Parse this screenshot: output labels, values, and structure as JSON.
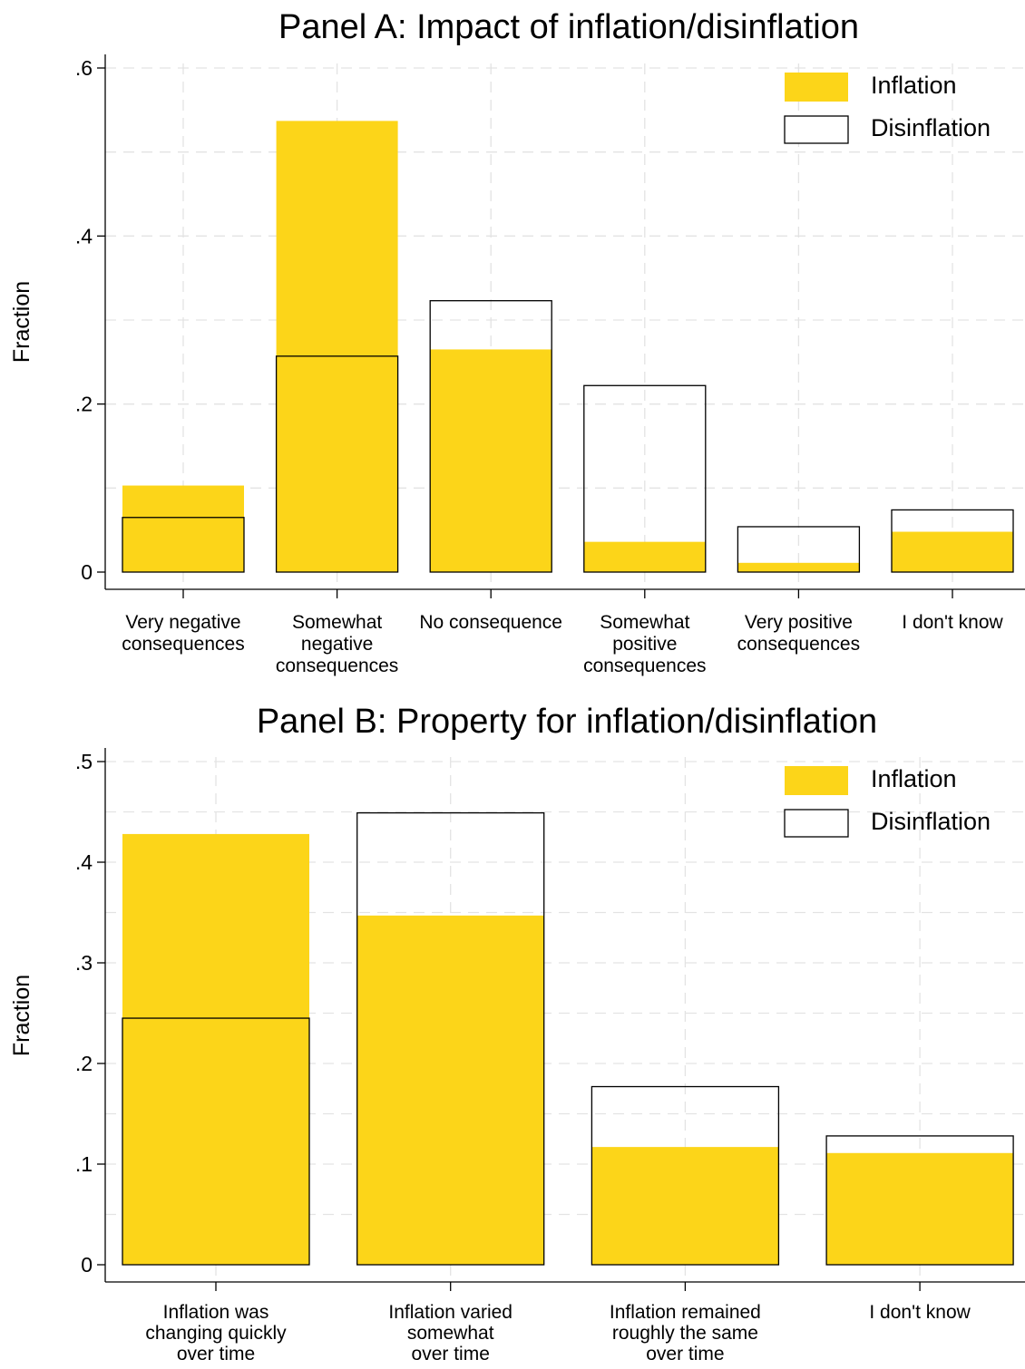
{
  "chart_data": [
    {
      "type": "bar",
      "title": "Panel A: Impact of inflation/disinflation",
      "ylabel": "Fraction",
      "xlabel": "",
      "ylim": [
        0,
        0.6
      ],
      "yticks": [
        0,
        0.2,
        0.4,
        0.6
      ],
      "ytick_labels": [
        "0",
        ".2",
        ".4",
        ".6"
      ],
      "legend_position": "top-right",
      "grid": true,
      "categories": [
        [
          "Very negative",
          "consequences"
        ],
        [
          "Somewhat",
          "negative",
          "consequences"
        ],
        [
          "No consequence"
        ],
        [
          "Somewhat",
          "positive",
          "consequences"
        ],
        [
          "Very positive",
          "consequences"
        ],
        [
          "I don't know"
        ]
      ],
      "series": [
        {
          "name": "Inflation",
          "color": "#fcd519",
          "style": "filled",
          "values": [
            0.103,
            0.537,
            0.265,
            0.036,
            0.011,
            0.048
          ]
        },
        {
          "name": "Disinflation",
          "color": "#000000",
          "style": "outline",
          "values": [
            0.065,
            0.257,
            0.323,
            0.222,
            0.054,
            0.074
          ]
        }
      ]
    },
    {
      "type": "bar",
      "title": "Panel B: Property for inflation/disinflation",
      "ylabel": "Fraction",
      "xlabel": "",
      "ylim": [
        0,
        0.5
      ],
      "yticks": [
        0,
        0.1,
        0.2,
        0.3,
        0.4,
        0.5
      ],
      "ytick_labels": [
        "0",
        ".1",
        ".2",
        ".3",
        ".4",
        ".5"
      ],
      "legend_position": "top-right",
      "grid": true,
      "categories": [
        [
          "Inflation was",
          "changing quickly",
          "over time"
        ],
        [
          "Inflation varied",
          "somewhat",
          "over time"
        ],
        [
          "Inflation remained",
          "roughly the same",
          "over time"
        ],
        [
          "I don't know"
        ]
      ],
      "series": [
        {
          "name": "Inflation",
          "color": "#fcd519",
          "style": "filled",
          "values": [
            0.428,
            0.347,
            0.117,
            0.111
          ]
        },
        {
          "name": "Disinflation",
          "color": "#000000",
          "style": "outline",
          "values": [
            0.245,
            0.449,
            0.177,
            0.128
          ]
        }
      ]
    }
  ]
}
